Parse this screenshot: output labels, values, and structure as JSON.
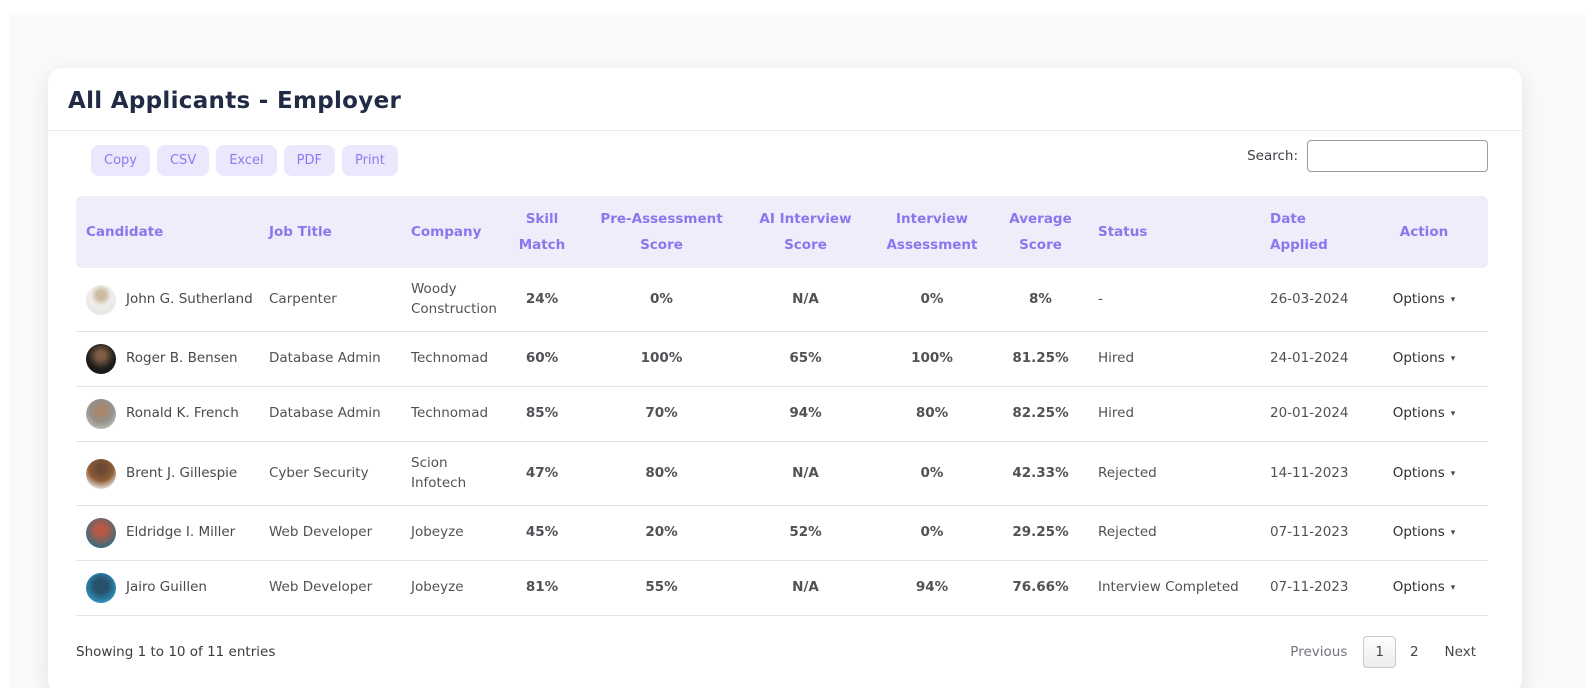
{
  "page": {
    "title": "All Applicants - Employer"
  },
  "toolbar": {
    "export_buttons": [
      "Copy",
      "CSV",
      "Excel",
      "PDF",
      "Print"
    ],
    "search_label": "Search:",
    "search_value": ""
  },
  "icons": {
    "dropdown_caret": "▾"
  },
  "table": {
    "columns": [
      "Candidate",
      "Job Title",
      "Company",
      "Skill Match",
      "Pre-Assessment Score",
      "AI Interview Score",
      "Interview Assessment",
      "Average Score",
      "Status",
      "Date Applied",
      "Action"
    ],
    "rows": [
      {
        "name": "John G. Sutherland",
        "job_title": "Carpenter",
        "company": "Woody Construction",
        "skill_match": {
          "value": "24%",
          "level": "red"
        },
        "pre_assessment_score": {
          "value": "0%",
          "level": "red"
        },
        "ai_interview_score": {
          "value": "N/A",
          "level": "red"
        },
        "interview_assessment": {
          "value": "0%",
          "level": "red"
        },
        "average_score": {
          "value": "8%",
          "level": "red"
        },
        "status": "-",
        "date_applied": "26-03-2024",
        "action_label": "Options"
      },
      {
        "name": "Roger B. Bensen",
        "job_title": "Database Admin",
        "company": "Technomad",
        "skill_match": {
          "value": "60%",
          "level": "yellow"
        },
        "pre_assessment_score": {
          "value": "100%",
          "level": "green"
        },
        "ai_interview_score": {
          "value": "65%",
          "level": "yellow"
        },
        "interview_assessment": {
          "value": "100%",
          "level": "green"
        },
        "average_score": {
          "value": "81.25%",
          "level": "green"
        },
        "status": "Hired",
        "date_applied": "24-01-2024",
        "action_label": "Options"
      },
      {
        "name": "Ronald K. French",
        "job_title": "Database Admin",
        "company": "Technomad",
        "skill_match": {
          "value": "85%",
          "level": "green"
        },
        "pre_assessment_score": {
          "value": "70%",
          "level": "yellow"
        },
        "ai_interview_score": {
          "value": "94%",
          "level": "green"
        },
        "interview_assessment": {
          "value": "80%",
          "level": "green"
        },
        "average_score": {
          "value": "82.25%",
          "level": "green"
        },
        "status": "Hired",
        "date_applied": "20-01-2024",
        "action_label": "Options"
      },
      {
        "name": "Brent J. Gillespie",
        "job_title": "Cyber Security",
        "company": "Scion Infotech",
        "skill_match": {
          "value": "47%",
          "level": "red"
        },
        "pre_assessment_score": {
          "value": "80%",
          "level": "green"
        },
        "ai_interview_score": {
          "value": "N/A",
          "level": "red"
        },
        "interview_assessment": {
          "value": "0%",
          "level": "red"
        },
        "average_score": {
          "value": "42.33%",
          "level": "yellow"
        },
        "status": "Rejected",
        "date_applied": "14-11-2023",
        "action_label": "Options"
      },
      {
        "name": "Eldridge I. Miller",
        "job_title": "Web Developer",
        "company": "Jobeyze",
        "skill_match": {
          "value": "45%",
          "level": "yellow"
        },
        "pre_assessment_score": {
          "value": "20%",
          "level": "red"
        },
        "ai_interview_score": {
          "value": "52%",
          "level": "yellow"
        },
        "interview_assessment": {
          "value": "0%",
          "level": "red"
        },
        "average_score": {
          "value": "29.25%",
          "level": "red"
        },
        "status": "Rejected",
        "date_applied": "07-11-2023",
        "action_label": "Options"
      },
      {
        "name": "Jairo Guillen",
        "job_title": "Web Developer",
        "company": "Jobeyze",
        "skill_match": {
          "value": "81%",
          "level": "green"
        },
        "pre_assessment_score": {
          "value": "55%",
          "level": "yellow"
        },
        "ai_interview_score": {
          "value": "N/A",
          "level": "red"
        },
        "interview_assessment": {
          "value": "94%",
          "level": "green"
        },
        "average_score": {
          "value": "76.66%",
          "level": "green"
        },
        "status": "Interview Completed",
        "date_applied": "07-11-2023",
        "action_label": "Options"
      }
    ]
  },
  "footer": {
    "info": "Showing 1 to 10 of 11 entries",
    "pagination": {
      "previous_label": "Previous",
      "pages": [
        "1",
        "2"
      ],
      "active_page": "1",
      "next_label": "Next"
    }
  },
  "colors": {
    "red": "#e02950",
    "yellow": "#fcbf1a",
    "green": "#0e795c",
    "header_text": "#8c76ee",
    "header_bg": "#f0edfa",
    "button_bg": "#ece7fc",
    "button_text": "#8a7cf0"
  }
}
